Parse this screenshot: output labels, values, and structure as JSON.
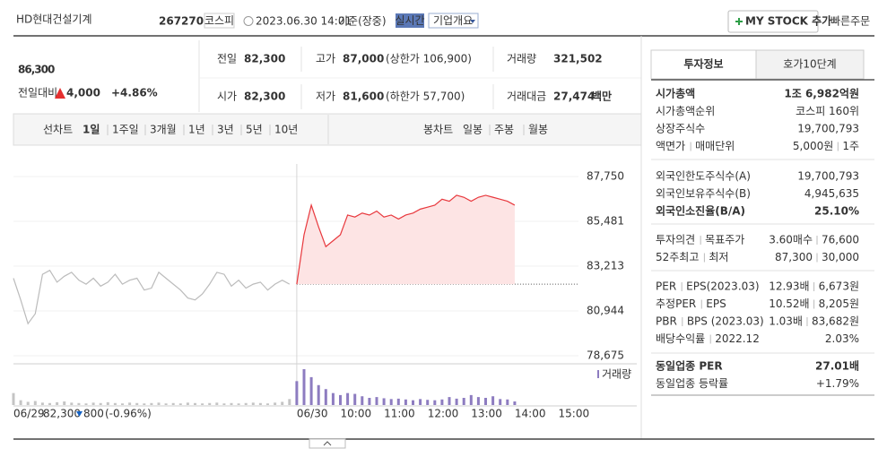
{
  "header": {
    "name": "HD현대건설기계",
    "code": "267270",
    "market": "코스피",
    "datetime": "2023.06.30 14:01",
    "basis": "기준(장중)",
    "realtime": "실시간",
    "overview": "기업개요",
    "my_stock": "MY STOCK 추가",
    "quick_order": "빠른주문"
  },
  "price": {
    "current": "86,300",
    "change_label": "전일대비",
    "change": "4,000",
    "rate": "+4.86%",
    "color": "#e52f2f"
  },
  "summary": [
    {
      "label": "전일",
      "value": "82,300"
    },
    {
      "label": "고가",
      "value": "87,000",
      "note": "(상한가 106,900)",
      "color": "#e52f2f"
    },
    {
      "label": "거래량",
      "value": "321,502"
    },
    {
      "label": "시가",
      "value": "82,300"
    },
    {
      "label": "저가",
      "value": "81,600",
      "note": "(하한가 57,700)",
      "color": "#1261c4"
    },
    {
      "label": "거래대금",
      "value": "27,474",
      "note": "백만"
    }
  ],
  "tabs": {
    "line_chart": "선차트",
    "periods": [
      "1일",
      "1주일",
      "3개월",
      "1년",
      "3년",
      "5년",
      "10년"
    ],
    "selected": 0,
    "candle_chart": "봉차트",
    "candles": [
      "일봉",
      "주봉",
      "월봉"
    ]
  },
  "chart_footer": {
    "prev_close": "82,300",
    "change": "800",
    "rate": "(-0.96%)",
    "color": "#1261c4"
  },
  "chart_data": {
    "type": "line",
    "categories": [
      "06/29",
      null,
      null,
      null,
      null,
      null,
      null,
      null,
      null,
      null,
      null,
      null,
      null,
      null,
      null,
      null,
      null,
      null,
      null,
      null,
      null,
      null,
      null,
      null,
      null,
      null,
      null,
      null,
      null,
      null,
      null,
      null,
      null,
      null,
      null,
      null,
      null,
      null,
      null,
      "06/30",
      null,
      null,
      null,
      null,
      null,
      "10:00",
      null,
      null,
      null,
      null,
      null,
      "11:00",
      null,
      null,
      null,
      null,
      null,
      "12:00",
      null,
      null,
      null,
      null,
      null,
      "13:00",
      null,
      null,
      null,
      null,
      null,
      "14:00",
      null,
      null,
      null,
      null,
      null,
      "15:00",
      null,
      null,
      null
    ],
    "series": [
      {
        "color": "#bbbbbb",
        "values": [
          82600,
          81500,
          80300,
          80800,
          82800,
          83000,
          82400,
          82700,
          82900,
          82500,
          82300,
          82600,
          82200,
          82400,
          82800,
          82300,
          82500,
          82600,
          82000,
          82100,
          82900,
          82600,
          82300,
          82000,
          81600,
          81500,
          81800,
          82300,
          82900,
          82800,
          82200,
          82500,
          82100,
          82300,
          82400,
          82000,
          82300,
          82500,
          82300,
          null,
          null,
          null,
          null,
          null,
          null,
          null,
          null,
          null,
          null,
          null,
          null,
          null,
          null,
          null,
          null,
          null,
          null,
          null,
          null,
          null,
          null,
          null,
          null,
          null,
          null,
          null,
          null,
          null,
          null,
          null,
          null,
          null,
          null,
          null,
          null,
          null,
          null,
          null,
          null
        ]
      },
      {
        "color": "#e8383d",
        "fill": "#fde4e4",
        "values": [
          null,
          null,
          null,
          null,
          null,
          null,
          null,
          null,
          null,
          null,
          null,
          null,
          null,
          null,
          null,
          null,
          null,
          null,
          null,
          null,
          null,
          null,
          null,
          null,
          null,
          null,
          null,
          null,
          null,
          null,
          null,
          null,
          null,
          null,
          null,
          null,
          null,
          null,
          null,
          82300,
          84800,
          86300,
          85200,
          84200,
          84500,
          84800,
          85800,
          85700,
          85900,
          85800,
          86000,
          85700,
          85800,
          85600,
          85800,
          85900,
          86100,
          86200,
          86300,
          86600,
          86500,
          86800,
          86700,
          86500,
          86700,
          86800,
          86700,
          86600,
          86500,
          86300,
          null,
          null,
          null,
          null,
          null,
          null,
          null,
          null,
          null
        ]
      }
    ],
    "reference_line": 82300,
    "volume": {
      "label": "거래량",
      "colors": [
        "#c4c4c4",
        "#8d7cc0"
      ],
      "values": [
        30,
        12,
        8,
        10,
        6,
        5,
        7,
        9,
        6,
        5,
        4,
        6,
        5,
        7,
        5,
        4,
        6,
        5,
        4,
        5,
        6,
        4,
        5,
        4,
        6,
        5,
        4,
        5,
        6,
        4,
        5,
        4,
        5,
        6,
        5,
        4,
        6,
        8,
        15,
        60,
        90,
        70,
        50,
        40,
        30,
        25,
        30,
        28,
        22,
        18,
        20,
        17,
        15,
        16,
        14,
        12,
        15,
        13,
        12,
        14,
        20,
        16,
        18,
        25,
        20,
        18,
        22,
        15,
        14,
        9,
        null,
        null,
        null,
        null,
        null,
        null,
        null,
        null,
        null
      ]
    },
    "ylim": [
      78675,
      87750
    ],
    "yticks": [
      {
        "value": 78675,
        "label": "78,675"
      },
      {
        "value": 80944,
        "label": "80,944"
      },
      {
        "value": 83213,
        "label": "83,213"
      },
      {
        "value": 85481,
        "label": "85,481"
      },
      {
        "value": 87750,
        "label": "87,750"
      }
    ],
    "grid": true
  },
  "side": {
    "tabs": [
      "투자정보",
      "호가10단계"
    ],
    "groups": [
      [
        {
          "label": [
            "시가총액"
          ],
          "value": [
            "1조 6,982억원"
          ],
          "strong": true
        },
        {
          "label": [
            "시가총액순위"
          ],
          "value": [
            "코스피 160위"
          ]
        },
        {
          "label": [
            "상장주식수"
          ],
          "value": [
            "19,700,793"
          ]
        },
        {
          "label": [
            "액면가",
            "매매단위"
          ],
          "value": [
            "5,000원",
            "1주"
          ]
        }
      ],
      [
        {
          "label": [
            "외국인한도주식수(A)"
          ],
          "value": [
            "19,700,793"
          ]
        },
        {
          "label": [
            "외국인보유주식수(B)"
          ],
          "value": [
            "4,945,635"
          ]
        },
        {
          "label": [
            "외국인소진율(B/A)"
          ],
          "value": [
            "25.10%"
          ],
          "strong": true
        }
      ],
      [
        {
          "label": [
            "투자의견",
            "목표주가"
          ],
          "value": [
            "3.60매수",
            "76,600"
          ],
          "value_color": "#e52f2f"
        },
        {
          "label": [
            "52주최고",
            "최저"
          ],
          "value": [
            "87,300",
            "30,000"
          ]
        }
      ],
      [
        {
          "label": [
            "PER",
            "EPS(2023.03)"
          ],
          "value": [
            "12.93배",
            "6,673원"
          ]
        },
        {
          "label": [
            "추정PER",
            "EPS"
          ],
          "value": [
            "10.52배",
            "8,205원"
          ]
        },
        {
          "label": [
            "PBR",
            "BPS (2023.03)"
          ],
          "value": [
            "1.03배",
            "83,682원"
          ]
        },
        {
          "label": [
            "배당수익률",
            "2022.12"
          ],
          "value": [
            "2.03%"
          ]
        }
      ],
      [
        {
          "label": [
            "동일업종 PER"
          ],
          "value": [
            "27.01배"
          ],
          "strong": true
        },
        {
          "label": [
            "동일업종 등락률"
          ],
          "value": [
            "+1.79%"
          ],
          "value_color": "#e52f2f"
        }
      ]
    ]
  }
}
